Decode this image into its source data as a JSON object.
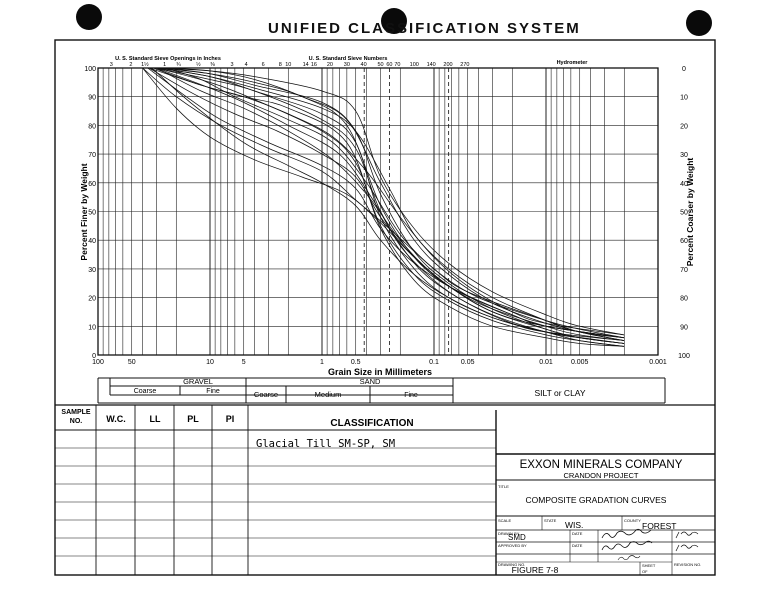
{
  "title": "UNIFIED CLASSIFICATION SYSTEM",
  "chart_data": {
    "type": "line",
    "x_scale": "log",
    "x_reversed": true,
    "xlabel": "Grain Size in Millimeters",
    "ylabel": "Percent Finer by Weight",
    "ylabel_right": "Percent Coarser by Weight",
    "xlim": [
      100,
      0.001
    ],
    "ylim": [
      0,
      100
    ],
    "x_ticks": [
      "100",
      "50",
      "10",
      "5",
      "1",
      "0.5",
      "0.1",
      "0.05",
      "0.01",
      "0.005",
      "0.001"
    ],
    "y_ticks": [
      "0",
      "10",
      "20",
      "30",
      "40",
      "50",
      "60",
      "70",
      "80",
      "90",
      "100"
    ],
    "y_ticks_right": [
      "100",
      "90",
      "80",
      "70",
      "60",
      "50",
      "40",
      "30",
      "20",
      "10",
      "0"
    ],
    "sieve_inch_label": "U. S. Standard Sieve Openings in Inches",
    "sieve_inch_ticks": [
      "3",
      "2",
      "1½",
      "1",
      "¾",
      "½",
      "⅜"
    ],
    "sieve_number_label": "U. S. Standard Sieve Numbers",
    "sieve_number_ticks": [
      "3",
      "4",
      "6",
      "8",
      "10",
      "14",
      "16",
      "20",
      "30",
      "40",
      "50",
      "60",
      "70",
      "100",
      "140",
      "200",
      "270"
    ],
    "hydrometer_label": "Hydrometer",
    "series": [
      {
        "x": [
          30,
          10,
          4,
          1,
          0.5,
          0.3,
          0.15,
          0.074,
          0.03,
          0.01,
          0.005,
          0.002
        ],
        "y": [
          100,
          96,
          92,
          82,
          72,
          50,
          32,
          22,
          14,
          8,
          6,
          4
        ]
      },
      {
        "x": [
          25,
          10,
          4,
          1,
          0.5,
          0.3,
          0.15,
          0.074,
          0.03,
          0.01,
          0.005,
          0.002
        ],
        "y": [
          100,
          98,
          94,
          88,
          78,
          56,
          36,
          25,
          16,
          9,
          6,
          4
        ]
      },
      {
        "x": [
          35,
          12,
          5,
          2,
          0.6,
          0.3,
          0.15,
          0.074,
          0.03,
          0.01,
          0.005,
          0.002
        ],
        "y": [
          100,
          94,
          90,
          86,
          74,
          44,
          26,
          17,
          10,
          6,
          4,
          3
        ]
      },
      {
        "x": [
          28,
          10,
          4,
          1,
          0.5,
          0.25,
          0.15,
          0.074,
          0.03,
          0.01,
          0.005,
          0.002
        ],
        "y": [
          100,
          97,
          93,
          86,
          78,
          58,
          42,
          30,
          20,
          12,
          8,
          6
        ]
      },
      {
        "x": [
          30,
          12,
          5,
          2,
          0.8,
          0.4,
          0.2,
          0.1,
          0.04,
          0.01,
          0.005,
          0.002
        ],
        "y": [
          100,
          92,
          86,
          78,
          68,
          56,
          40,
          28,
          18,
          10,
          7,
          5
        ]
      },
      {
        "x": [
          40,
          20,
          8,
          3,
          1,
          0.5,
          0.25,
          0.1,
          0.05,
          0.01,
          0.005,
          0.002
        ],
        "y": [
          100,
          90,
          80,
          72,
          64,
          54,
          44,
          30,
          22,
          12,
          8,
          5
        ]
      },
      {
        "x": [
          33,
          15,
          5,
          2,
          1,
          0.5,
          0.3,
          0.15,
          0.074,
          0.03,
          0.01,
          0.002
        ],
        "y": [
          100,
          88,
          74,
          66,
          60,
          52,
          40,
          28,
          20,
          13,
          8,
          4
        ]
      },
      {
        "x": [
          30,
          10,
          4,
          1,
          0.5,
          0.3,
          0.15,
          0.074,
          0.03,
          0.01,
          0.005,
          0.002
        ],
        "y": [
          100,
          99,
          97,
          92,
          85,
          62,
          44,
          32,
          22,
          14,
          10,
          7
        ]
      },
      {
        "x": [
          35,
          14,
          6,
          2.5,
          1,
          0.5,
          0.3,
          0.15,
          0.074,
          0.02,
          0.01,
          0.002
        ],
        "y": [
          100,
          91,
          84,
          78,
          70,
          62,
          48,
          34,
          24,
          14,
          10,
          6
        ]
      },
      {
        "x": [
          30,
          10,
          4,
          1,
          0.5,
          0.3,
          0.15,
          0.074,
          0.03,
          0.01,
          0.005,
          0.002
        ],
        "y": [
          100,
          95,
          89,
          78,
          67,
          45,
          28,
          19,
          12,
          7,
          5,
          3
        ]
      },
      {
        "x": [
          25,
          12,
          6,
          2,
          0.8,
          0.4,
          0.2,
          0.1,
          0.04,
          0.01,
          0.005,
          0.002
        ],
        "y": [
          100,
          96,
          90,
          82,
          74,
          60,
          42,
          30,
          20,
          12,
          9,
          6
        ]
      },
      {
        "x": [
          30,
          10,
          5,
          2,
          0.7,
          0.35,
          0.2,
          0.1,
          0.05,
          0.02,
          0.01,
          0.002
        ],
        "y": [
          100,
          93,
          88,
          80,
          70,
          54,
          38,
          26,
          18,
          11,
          8,
          5
        ]
      },
      {
        "x": [
          36,
          15,
          8,
          3,
          1,
          0.5,
          0.3,
          0.15,
          0.06,
          0.02,
          0.01,
          0.002
        ],
        "y": [
          100,
          89,
          82,
          74,
          66,
          58,
          44,
          32,
          22,
          14,
          10,
          6
        ]
      },
      {
        "x": [
          28,
          10,
          4,
          1.5,
          0.6,
          0.3,
          0.15,
          0.074,
          0.03,
          0.01,
          0.005,
          0.002
        ],
        "y": [
          100,
          98,
          95,
          90,
          80,
          52,
          34,
          24,
          15,
          9,
          6,
          4
        ]
      },
      {
        "x": [
          32,
          12,
          5,
          2,
          0.8,
          0.4,
          0.2,
          0.1,
          0.05,
          0.02,
          0.01,
          0.002
        ],
        "y": [
          100,
          94,
          90,
          84,
          76,
          64,
          48,
          34,
          24,
          15,
          11,
          7
        ]
      },
      {
        "x": [
          40,
          20,
          10,
          4,
          1.5,
          0.6,
          0.3,
          0.15,
          0.074,
          0.03,
          0.01,
          0.002
        ],
        "y": [
          100,
          86,
          76,
          68,
          62,
          56,
          46,
          34,
          24,
          15,
          10,
          6
        ]
      },
      {
        "x": [
          30,
          10,
          4,
          1,
          0.5,
          0.3,
          0.15,
          0.074,
          0.03,
          0.01,
          0.005,
          0.002
        ],
        "y": [
          100,
          97,
          92,
          84,
          74,
          48,
          30,
          20,
          13,
          8,
          5,
          3
        ]
      },
      {
        "x": [
          26,
          10,
          4,
          1.5,
          0.6,
          0.3,
          0.15,
          0.074,
          0.03,
          0.01,
          0.005,
          0.002
        ],
        "y": [
          100,
          99,
          96,
          90,
          82,
          60,
          40,
          28,
          18,
          11,
          8,
          5
        ]
      }
    ]
  },
  "size_scale": {
    "gravel_label": "GRAVEL",
    "gravel_coarse": "Coarse",
    "gravel_fine": "Fine",
    "sand_label": "SAND",
    "sand_coarse": "Coarse",
    "sand_medium": "Medium",
    "sand_fine": "Fine",
    "silt_clay": "SILT or CLAY"
  },
  "table": {
    "headers": [
      "SAMPLE NO.",
      "W.C.",
      "LL",
      "PL",
      "PI",
      "CLASSIFICATION"
    ],
    "classification_text": "Glacial Till SM-SP, SM"
  },
  "title_block": {
    "company": "EXXON MINERALS COMPANY",
    "project": "CRANDON PROJECT",
    "title_label": "TITLE",
    "title": "COMPOSITE GRADATION CURVES",
    "scale_label": "SCALE",
    "state_label": "STATE",
    "state": "WIS.",
    "county_label": "COUNTY",
    "county": "FOREST",
    "drawn_label": "DRAWN BY",
    "drawn": "SMD",
    "date_label": "DATE",
    "approved_label": "APPROVED BY",
    "drawing_no_label": "DRAWING NO.",
    "figure": "FIGURE 7-8",
    "sheet_label": "SHEET",
    "of_label": "OF",
    "revision_label": "REVISION NO."
  }
}
